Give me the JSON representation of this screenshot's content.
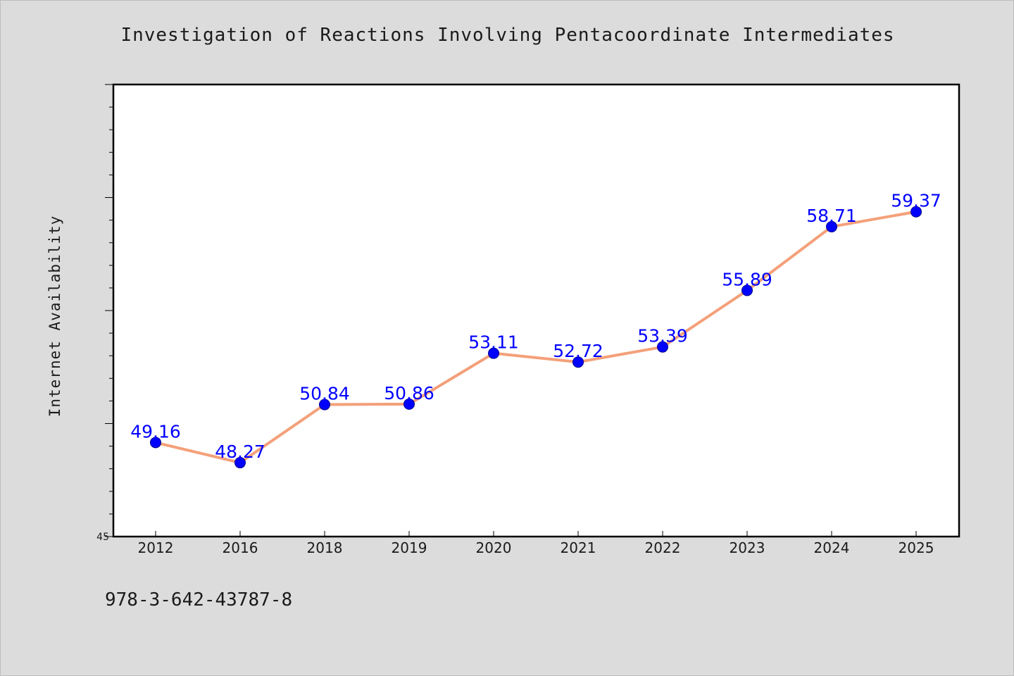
{
  "chart_data": {
    "type": "line",
    "title": "Investigation of Reactions Involving Pentacoordinate Intermediates",
    "xlabel": "",
    "ylabel": "Internet Availability",
    "categories": [
      "2012",
      "2016",
      "2018",
      "2019",
      "2020",
      "2021",
      "2022",
      "2023",
      "2024",
      "2025"
    ],
    "series": [
      {
        "values": [
          49.16,
          48.27,
          50.84,
          50.86,
          53.11,
          52.72,
          53.39,
          55.89,
          58.71,
          59.37
        ],
        "data_labels": [
          "49.16",
          "48.27",
          "50.84",
          "50.86",
          "53.11",
          "52.72",
          "53.39",
          "55.89",
          "58.71",
          "59.37"
        ],
        "line_color": "#f4a07a",
        "marker_color": "#0000ff"
      }
    ],
    "ylim": [
      45,
      65
    ],
    "y_tick_labels": [
      "45"
    ],
    "grid": false,
    "legend": "none"
  },
  "footer": {
    "code": "978-3-642-43787-8"
  }
}
